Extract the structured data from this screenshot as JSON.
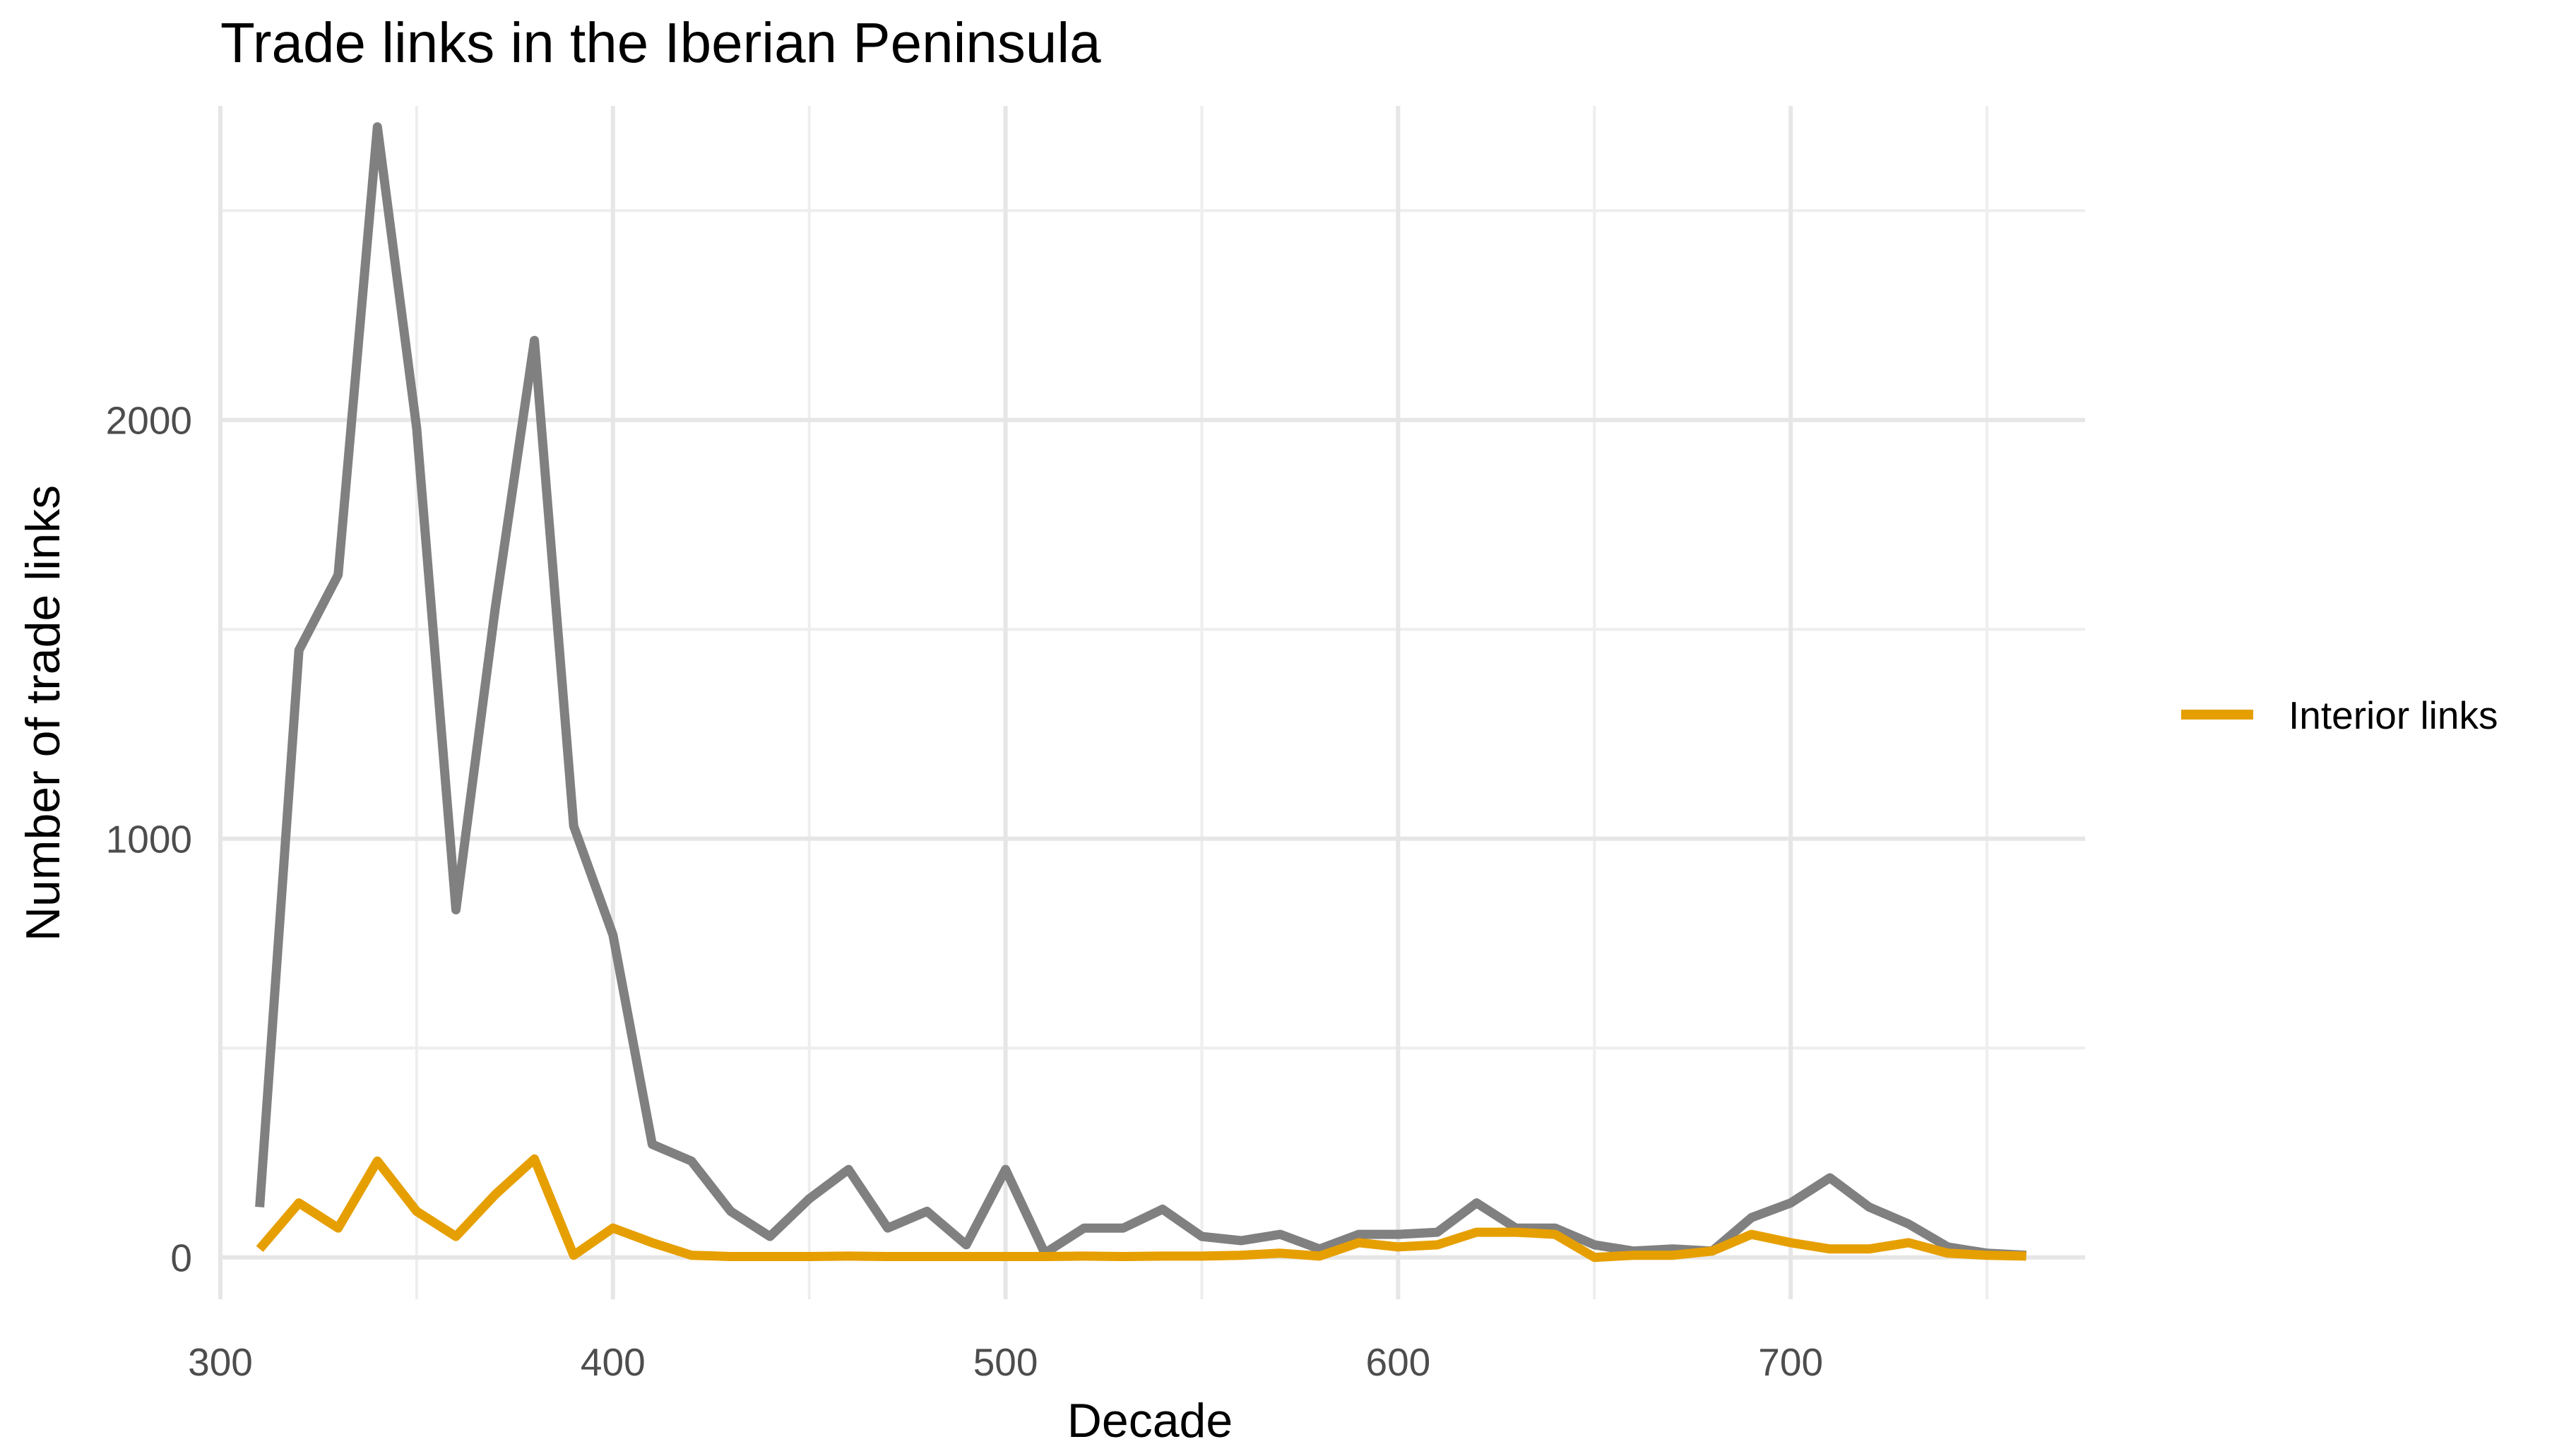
{
  "chart_data": {
    "type": "line",
    "title": "Trade links in the Iberian Peninsula",
    "xlabel": "Decade",
    "ylabel": "Number of trade links",
    "xlim": [
      300,
      775
    ],
    "ylim": [
      -100,
      2750
    ],
    "x_ticks": [
      300,
      400,
      500,
      600,
      700
    ],
    "y_ticks": [
      0,
      1000,
      2000
    ],
    "grid": true,
    "legend_position": "right",
    "x": [
      310,
      320,
      330,
      340,
      350,
      360,
      370,
      380,
      390,
      400,
      410,
      420,
      430,
      440,
      450,
      460,
      470,
      480,
      490,
      500,
      510,
      520,
      530,
      540,
      550,
      560,
      570,
      580,
      590,
      600,
      610,
      620,
      630,
      640,
      650,
      660,
      670,
      680,
      690,
      700,
      710,
      720,
      730,
      740,
      750,
      760
    ],
    "series": [
      {
        "name": "",
        "color": "#808080",
        "values": [
          120,
          1450,
          1630,
          2700,
          1980,
          830,
          1550,
          2190,
          1030,
          770,
          270,
          230,
          110,
          50,
          140,
          210,
          70,
          110,
          30,
          210,
          10,
          70,
          70,
          115,
          50,
          40,
          55,
          20,
          55,
          55,
          60,
          130,
          70,
          70,
          30,
          15,
          20,
          15,
          95,
          130,
          190,
          120,
          80,
          25,
          10,
          5
        ]
      },
      {
        "name": "Interior links",
        "color": "#E69F00",
        "values": [
          20,
          130,
          70,
          230,
          110,
          50,
          150,
          235,
          5,
          70,
          35,
          5,
          2,
          2,
          2,
          3,
          2,
          2,
          2,
          2,
          2,
          3,
          2,
          3,
          3,
          5,
          10,
          3,
          35,
          25,
          30,
          60,
          60,
          55,
          0,
          5,
          5,
          15,
          55,
          35,
          20,
          20,
          35,
          10,
          5,
          3
        ]
      }
    ]
  }
}
